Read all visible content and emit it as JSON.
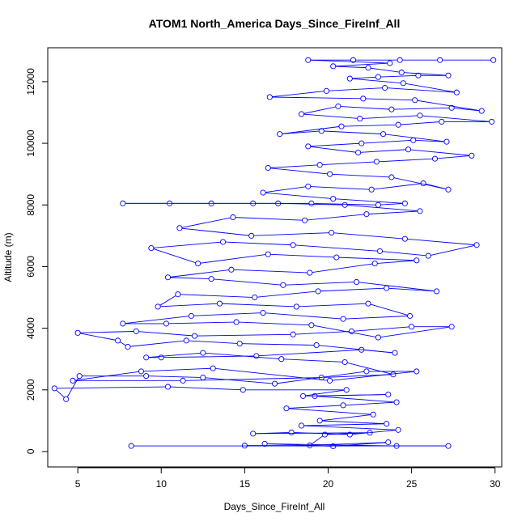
{
  "chart_data": {
    "type": "line",
    "title": "ATOM1 North_America Days_Since_FireInf_All",
    "xlabel": "Days_Since_FireInf_All",
    "ylabel": "Altitude (m)",
    "xlim": [
      3.2,
      30.4
    ],
    "ylim": [
      -500,
      13100
    ],
    "xticks": [
      "5",
      "10",
      "15",
      "20",
      "25",
      "30"
    ],
    "xtick_values": [
      5,
      10,
      15,
      20,
      25,
      30
    ],
    "yticks": [
      "0",
      "2000",
      "4000",
      "6000",
      "8000",
      "10000",
      "12000"
    ],
    "ytick_values": [
      0,
      2000,
      4000,
      6000,
      8000,
      10000,
      12000
    ],
    "grid": false,
    "marker": "open-circle",
    "series": [
      {
        "color": "#0000ff",
        "points": [
          [
            8.2,
            180
          ],
          [
            27.2,
            180
          ],
          [
            15.0,
            190
          ],
          [
            24.1,
            180
          ],
          [
            16.2,
            250
          ],
          [
            20.3,
            170
          ],
          [
            23.6,
            300
          ],
          [
            18.9,
            200
          ],
          [
            19.8,
            550
          ],
          [
            22.5,
            610
          ],
          [
            15.5,
            580
          ],
          [
            17.8,
            620
          ],
          [
            21.3,
            550
          ],
          [
            24.2,
            700
          ],
          [
            18.4,
            840
          ],
          [
            23.5,
            900
          ],
          [
            19.5,
            1000
          ],
          [
            22.7,
            1200
          ],
          [
            17.5,
            1400
          ],
          [
            20.9,
            1500
          ],
          [
            24.1,
            1600
          ],
          [
            19.2,
            1800
          ],
          [
            23.6,
            1850
          ],
          [
            18.5,
            1800
          ],
          [
            21.1,
            2000
          ],
          [
            14.9,
            2000
          ],
          [
            10.4,
            2100
          ],
          [
            3.6,
            2050
          ],
          [
            4.3,
            1700
          ],
          [
            5.1,
            2450
          ],
          [
            9.1,
            2450
          ],
          [
            12.5,
            2400
          ],
          [
            16.8,
            2200
          ],
          [
            22.3,
            2600
          ],
          [
            25.3,
            2600
          ],
          [
            20.1,
            2300
          ],
          [
            13.1,
            2700
          ],
          [
            8.8,
            2600
          ],
          [
            4.7,
            2300
          ],
          [
            11.3,
            2300
          ],
          [
            19.6,
            2400
          ],
          [
            23.9,
            2500
          ],
          [
            21.0,
            2900
          ],
          [
            17.2,
            3000
          ],
          [
            12.5,
            3200
          ],
          [
            9.1,
            3050
          ],
          [
            10.0,
            3050
          ],
          [
            15.7,
            3100
          ],
          [
            22.0,
            3300
          ],
          [
            24.0,
            3200
          ],
          [
            19.3,
            3450
          ],
          [
            14.7,
            3500
          ],
          [
            11.5,
            3600
          ],
          [
            8.0,
            3400
          ],
          [
            7.4,
            3600
          ],
          [
            5.0,
            3850
          ],
          [
            8.5,
            3900
          ],
          [
            12.0,
            3750
          ],
          [
            17.9,
            3800
          ],
          [
            21.4,
            3900
          ],
          [
            25.0,
            4050
          ],
          [
            27.4,
            4050
          ],
          [
            23.0,
            3700
          ],
          [
            19.0,
            4100
          ],
          [
            14.5,
            4200
          ],
          [
            10.3,
            4150
          ],
          [
            7.7,
            4150
          ],
          [
            11.8,
            4400
          ],
          [
            16.1,
            4500
          ],
          [
            20.9,
            4300
          ],
          [
            24.9,
            4400
          ],
          [
            22.4,
            4800
          ],
          [
            18.1,
            4700
          ],
          [
            13.5,
            4800
          ],
          [
            9.8,
            4700
          ],
          [
            11.0,
            5100
          ],
          [
            15.6,
            5000
          ],
          [
            19.4,
            5200
          ],
          [
            23.5,
            5300
          ],
          [
            26.5,
            5200
          ],
          [
            21.7,
            5500
          ],
          [
            17.3,
            5400
          ],
          [
            13.0,
            5600
          ],
          [
            10.4,
            5650
          ],
          [
            14.2,
            5900
          ],
          [
            18.9,
            5800
          ],
          [
            22.8,
            6100
          ],
          [
            25.3,
            6200
          ],
          [
            20.5,
            6300
          ],
          [
            16.4,
            6400
          ],
          [
            12.2,
            6100
          ],
          [
            9.4,
            6600
          ],
          [
            13.7,
            6800
          ],
          [
            17.9,
            6700
          ],
          [
            23.1,
            6500
          ],
          [
            26.0,
            6350
          ],
          [
            28.9,
            6700
          ],
          [
            24.6,
            6900
          ],
          [
            20.2,
            7100
          ],
          [
            15.4,
            7000
          ],
          [
            11.1,
            7250
          ],
          [
            14.3,
            7600
          ],
          [
            18.6,
            7500
          ],
          [
            22.3,
            7700
          ],
          [
            25.5,
            7800
          ],
          [
            21.0,
            8000
          ],
          [
            17.0,
            8050
          ],
          [
            7.7,
            8050
          ],
          [
            10.5,
            8050
          ],
          [
            13.0,
            8050
          ],
          [
            15.5,
            8050
          ],
          [
            19.0,
            8050
          ],
          [
            23.0,
            8000
          ],
          [
            24.6,
            8050
          ],
          [
            20.3,
            8200
          ],
          [
            16.1,
            8400
          ],
          [
            18.8,
            8600
          ],
          [
            22.6,
            8500
          ],
          [
            25.7,
            8700
          ],
          [
            27.2,
            8500
          ],
          [
            23.8,
            8900
          ],
          [
            20.1,
            9000
          ],
          [
            16.4,
            9200
          ],
          [
            19.5,
            9300
          ],
          [
            22.9,
            9400
          ],
          [
            26.4,
            9500
          ],
          [
            28.6,
            9600
          ],
          [
            24.8,
            9800
          ],
          [
            21.8,
            9700
          ],
          [
            18.8,
            9900
          ],
          [
            22.0,
            10000
          ],
          [
            25.1,
            10100
          ],
          [
            27.1,
            10050
          ],
          [
            23.3,
            10300
          ],
          [
            19.6,
            10400
          ],
          [
            17.1,
            10300
          ],
          [
            20.8,
            10550
          ],
          [
            24.2,
            10600
          ],
          [
            26.8,
            10700
          ],
          [
            29.8,
            10700
          ],
          [
            25.5,
            10900
          ],
          [
            21.9,
            10800
          ],
          [
            18.4,
            10950
          ],
          [
            20.6,
            11200
          ],
          [
            23.8,
            11100
          ],
          [
            27.4,
            11150
          ],
          [
            29.2,
            11050
          ],
          [
            25.2,
            11400
          ],
          [
            22.1,
            11450
          ],
          [
            16.5,
            11500
          ],
          [
            19.9,
            11700
          ],
          [
            23.4,
            11800
          ],
          [
            27.7,
            11650
          ],
          [
            24.5,
            11950
          ],
          [
            21.3,
            12100
          ],
          [
            23.0,
            12150
          ],
          [
            25.4,
            12200
          ],
          [
            27.2,
            12200
          ],
          [
            24.4,
            12300
          ],
          [
            22.4,
            12450
          ],
          [
            20.3,
            12500
          ],
          [
            23.7,
            12600
          ],
          [
            18.8,
            12700
          ],
          [
            21.5,
            12700
          ],
          [
            24.3,
            12700
          ],
          [
            26.7,
            12700
          ],
          [
            29.9,
            12700
          ]
        ]
      }
    ]
  }
}
